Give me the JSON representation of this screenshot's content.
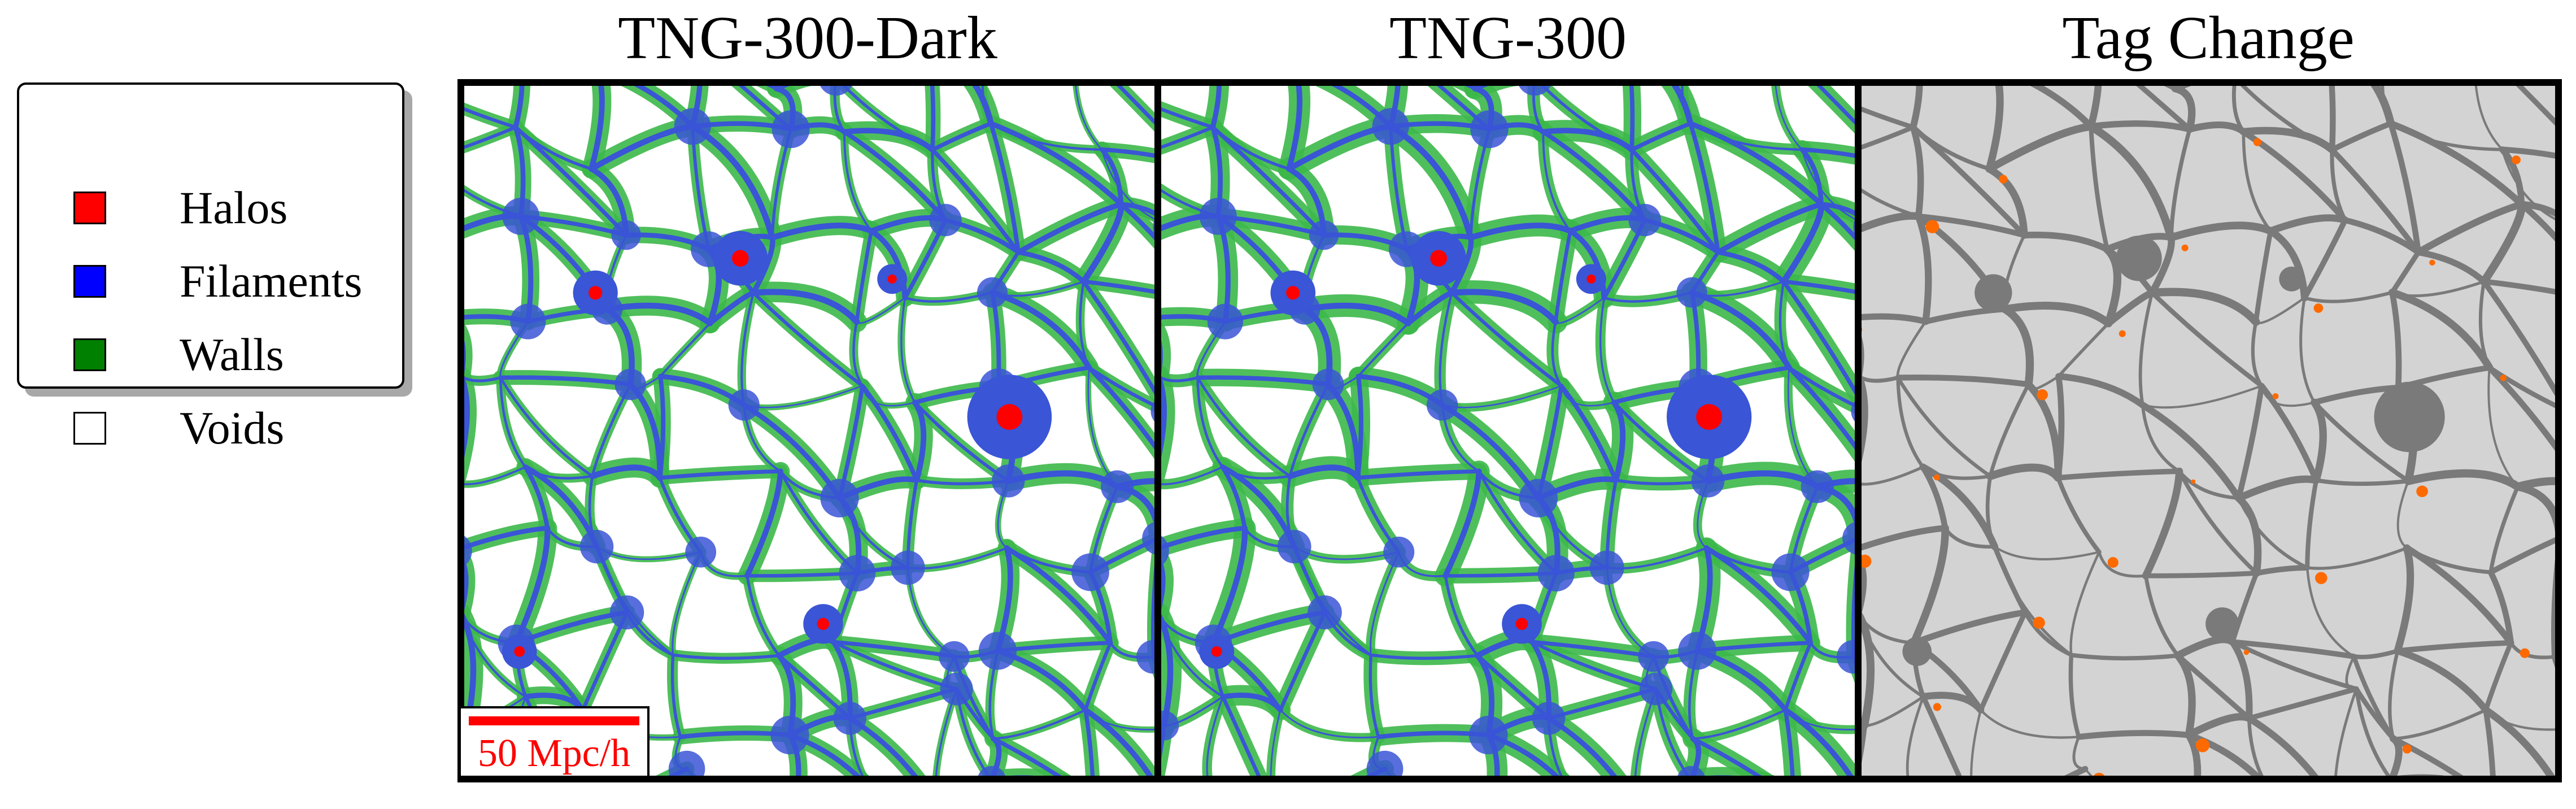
{
  "legend": {
    "items": [
      {
        "label": "Halos",
        "color": "#ff0000"
      },
      {
        "label": "Filaments",
        "color": "#0000ff"
      },
      {
        "label": "Walls",
        "color": "#008000"
      },
      {
        "label": "Voids",
        "color": "#ffffff"
      }
    ]
  },
  "panels": [
    {
      "title": "TNG-300-Dark",
      "background": "#ffffff",
      "wall_color": "#3cb84a",
      "filament_color": "#3a55d6",
      "halo_color": "#ff0000"
    },
    {
      "title": "TNG-300",
      "background": "#ffffff",
      "wall_color": "#3cb84a",
      "filament_color": "#3a55d6",
      "halo_color": "#ff0000"
    },
    {
      "title": "Tag Change",
      "background": "#d3d3d3",
      "structure_color": "#7a7a7a",
      "change_color": "#ff6a00"
    }
  ],
  "scale_bar": {
    "label": "50 Mpc/h",
    "color": "#ff0000"
  }
}
